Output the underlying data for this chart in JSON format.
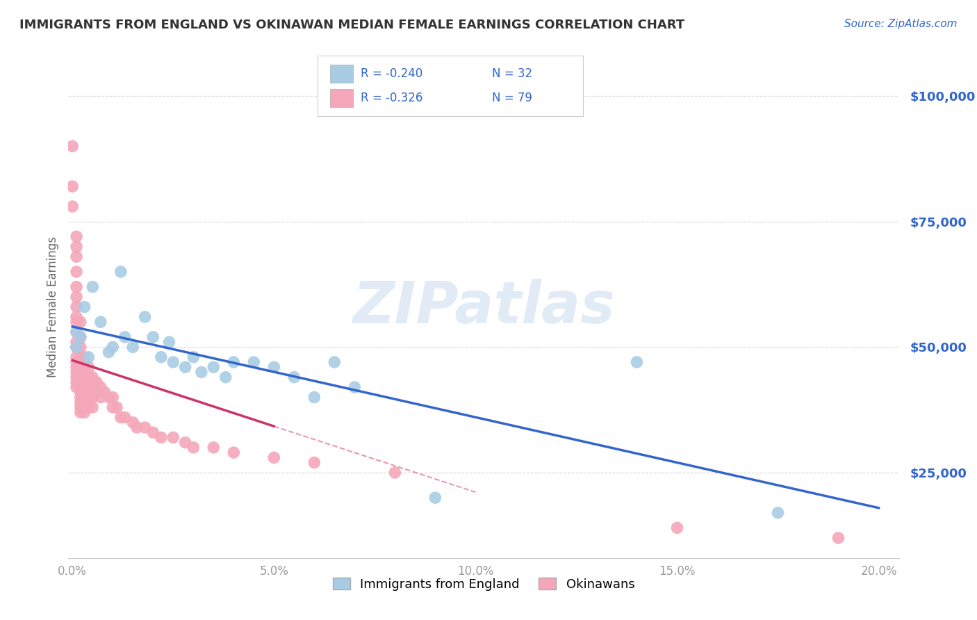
{
  "title": "IMMIGRANTS FROM ENGLAND VS OKINAWAN MEDIAN FEMALE EARNINGS CORRELATION CHART",
  "source": "Source: ZipAtlas.com",
  "ylabel": "Median Female Earnings",
  "ytick_labels": [
    "$25,000",
    "$50,000",
    "$75,000",
    "$100,000"
  ],
  "ytick_vals": [
    25000,
    50000,
    75000,
    100000
  ],
  "ylim": [
    8000,
    108000
  ],
  "xlim": [
    -0.001,
    0.205
  ],
  "xtick_vals": [
    0.0,
    0.05,
    0.1,
    0.15,
    0.2
  ],
  "xtick_labels": [
    "0.0%",
    "5.0%",
    "10.0%",
    "15.0%",
    "20.0%"
  ],
  "watermark": "ZIPatlas",
  "legend_r1": "R = -0.240",
  "legend_n1": "N = 32",
  "legend_r2": "R = -0.326",
  "legend_n2": "N = 79",
  "legend_label1": "Immigrants from England",
  "legend_label2": "Okinawans",
  "blue_color": "#a8cce4",
  "pink_color": "#f4a7b9",
  "trendline_blue": "#3366cc",
  "trendline_pink": "#cc3366",
  "blue_scatter_x": [
    0.001,
    0.001,
    0.002,
    0.003,
    0.004,
    0.005,
    0.007,
    0.009,
    0.01,
    0.012,
    0.013,
    0.015,
    0.018,
    0.02,
    0.022,
    0.024,
    0.025,
    0.028,
    0.03,
    0.032,
    0.035,
    0.038,
    0.04,
    0.045,
    0.05,
    0.055,
    0.06,
    0.065,
    0.07,
    0.09,
    0.14,
    0.175
  ],
  "blue_scatter_y": [
    50000,
    53000,
    52000,
    58000,
    48000,
    62000,
    55000,
    49000,
    50000,
    65000,
    52000,
    50000,
    56000,
    52000,
    48000,
    51000,
    47000,
    46000,
    48000,
    45000,
    46000,
    44000,
    47000,
    47000,
    46000,
    44000,
    40000,
    47000,
    42000,
    20000,
    47000,
    17000
  ],
  "pink_scatter_x": [
    0.0,
    0.0,
    0.0,
    0.001,
    0.001,
    0.001,
    0.001,
    0.001,
    0.001,
    0.001,
    0.001,
    0.001,
    0.001,
    0.001,
    0.001,
    0.001,
    0.001,
    0.001,
    0.001,
    0.001,
    0.001,
    0.001,
    0.002,
    0.002,
    0.002,
    0.002,
    0.002,
    0.002,
    0.002,
    0.002,
    0.002,
    0.002,
    0.002,
    0.002,
    0.002,
    0.002,
    0.002,
    0.003,
    0.003,
    0.003,
    0.003,
    0.003,
    0.003,
    0.003,
    0.004,
    0.004,
    0.004,
    0.004,
    0.004,
    0.005,
    0.005,
    0.005,
    0.005,
    0.006,
    0.006,
    0.007,
    0.007,
    0.008,
    0.009,
    0.01,
    0.01,
    0.011,
    0.012,
    0.013,
    0.015,
    0.016,
    0.018,
    0.02,
    0.022,
    0.025,
    0.028,
    0.03,
    0.035,
    0.04,
    0.05,
    0.06,
    0.08,
    0.15,
    0.19
  ],
  "pink_scatter_y": [
    90000,
    82000,
    78000,
    72000,
    70000,
    68000,
    65000,
    62000,
    60000,
    58000,
    56000,
    55000,
    53000,
    51000,
    50000,
    48000,
    47000,
    46000,
    45000,
    44000,
    43000,
    42000,
    55000,
    52000,
    50000,
    48000,
    47000,
    46000,
    45000,
    44000,
    43000,
    42000,
    41000,
    40000,
    39000,
    38000,
    37000,
    48000,
    46000,
    44000,
    42000,
    40000,
    38000,
    37000,
    46000,
    44000,
    42000,
    40000,
    38000,
    44000,
    42000,
    40000,
    38000,
    43000,
    41000,
    42000,
    40000,
    41000,
    40000,
    40000,
    38000,
    38000,
    36000,
    36000,
    35000,
    34000,
    34000,
    33000,
    32000,
    32000,
    31000,
    30000,
    30000,
    29000,
    28000,
    27000,
    25000,
    14000,
    12000
  ],
  "background_color": "#ffffff",
  "grid_color": "#cccccc",
  "title_color": "#333333",
  "source_color": "#3366cc",
  "axis_label_color": "#666666",
  "tick_color_y": "#3366cc",
  "tick_color_x": "#999999"
}
